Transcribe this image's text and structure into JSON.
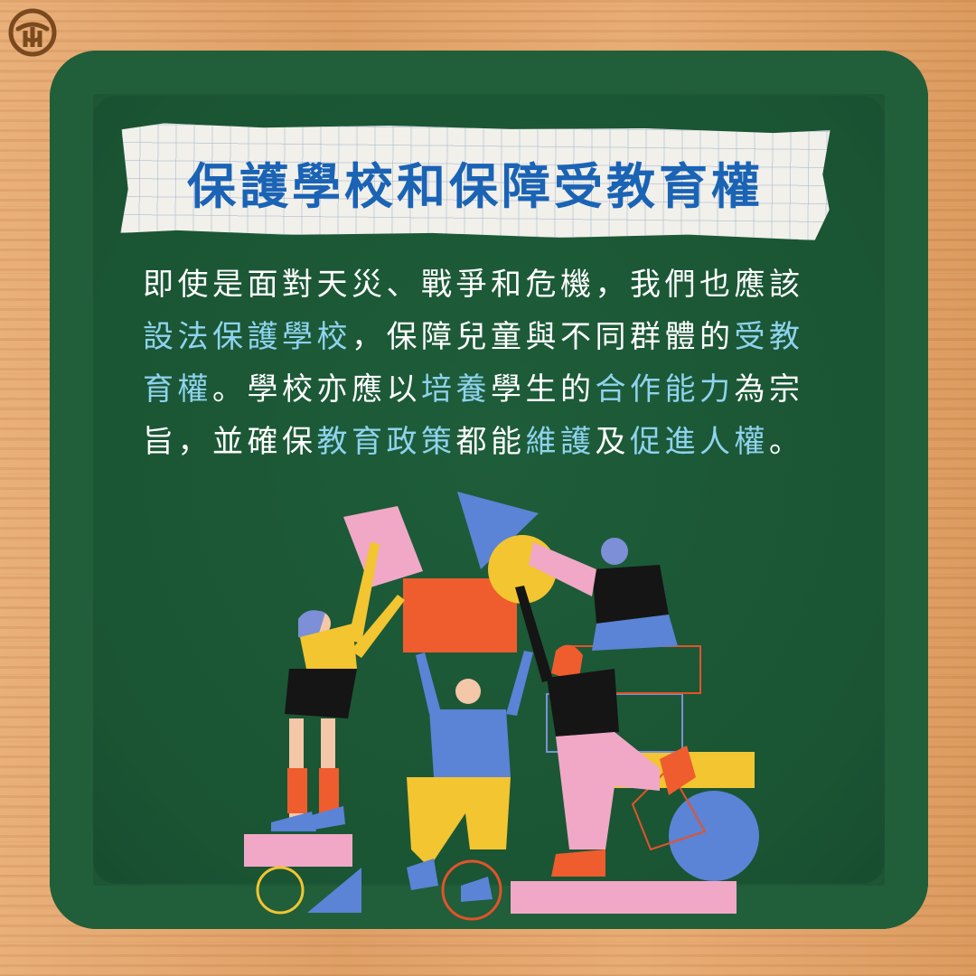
{
  "title": "保護學校和保障受教育權",
  "body_lines": [
    [
      {
        "text": "即使是面對天災、戰爭和危機，我們也應該",
        "hl": false
      }
    ],
    [
      {
        "text": "設法保護學校",
        "hl": true
      },
      {
        "text": "，保障兒童與不同群體的",
        "hl": false
      },
      {
        "text": "受教",
        "hl": true
      }
    ],
    [
      {
        "text": "育權",
        "hl": true
      },
      {
        "text": "。學校亦應以",
        "hl": false
      },
      {
        "text": "培養",
        "hl": true
      },
      {
        "text": "學生的",
        "hl": false
      },
      {
        "text": "合作能力",
        "hl": true
      },
      {
        "text": "為宗",
        "hl": false
      }
    ],
    [
      {
        "text": "旨，並確保",
        "hl": false
      },
      {
        "text": "教育政策",
        "hl": true
      },
      {
        "text": "都能",
        "hl": false
      },
      {
        "text": "維護",
        "hl": true
      },
      {
        "text": "及",
        "hl": false
      },
      {
        "text": "促進人權",
        "hl": true
      },
      {
        "text": "。",
        "hl": false
      }
    ]
  ],
  "colors": {
    "board": "#1f5b37",
    "title": "#1a63b5",
    "highlight": "#8fd3ef",
    "text": "#ffffff",
    "logo": "#7a4a1e"
  },
  "icons": {
    "logo": "organization-logo-icon"
  }
}
